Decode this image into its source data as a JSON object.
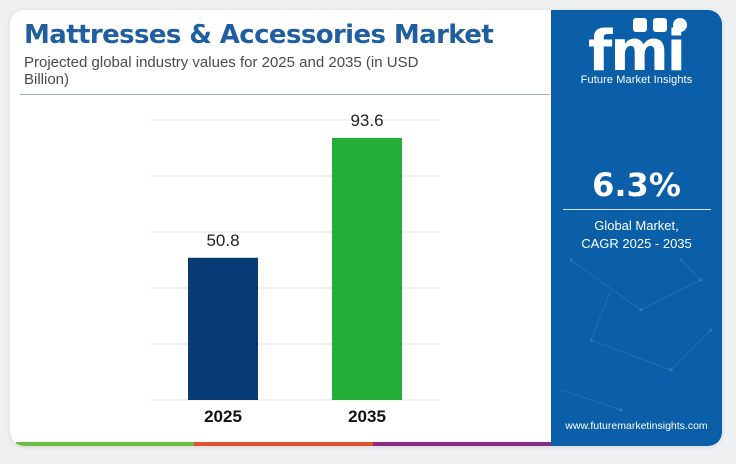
{
  "header": {
    "title": "Mattresses & Accessories Market",
    "subtitle": "Projected global industry values for 2025 and 2035 (in USD Billion)"
  },
  "sidebar": {
    "logo_text": "fmi",
    "logo_caption": "Future Market Insights",
    "cagr_value": "6.3%",
    "cagr_label_line1": "Global Market,",
    "cagr_label_line2": "CAGR 2025 - 2035",
    "website": "www.futuremarketinsights.com"
  },
  "colors": {
    "title": "#1f5fa0",
    "bar_2025": "#083a75",
    "bar_2035": "#25ad3a",
    "sidebar_bg": "#0a5fa8",
    "stripe": [
      "#6cbf3f",
      "#e0532c",
      "#8a2c83"
    ]
  },
  "chart_data": {
    "type": "bar",
    "categories": [
      "2025",
      "2035"
    ],
    "values": [
      50.8,
      93.6
    ],
    "value_labels": [
      "50.8",
      "93.6"
    ],
    "title": "Mattresses & Accessories Market",
    "xlabel": "",
    "ylabel": "",
    "ylim": [
      0,
      100
    ],
    "grid": true,
    "legend": "none"
  }
}
